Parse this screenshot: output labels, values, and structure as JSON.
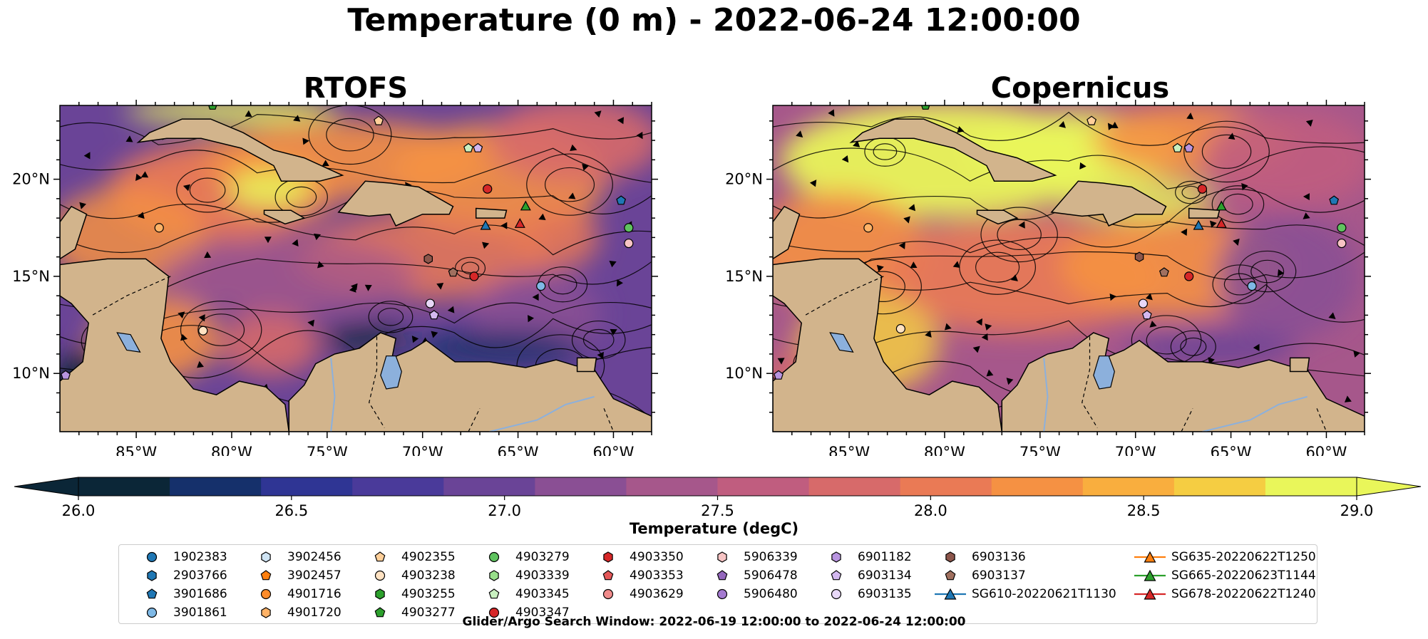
{
  "title": "Temperature (0 m) - 2022-06-24 12:00:00",
  "panels": [
    {
      "title": "RTOFS"
    },
    {
      "title": "Copernicus"
    }
  ],
  "axes": {
    "lon_ticks": [
      "85°W",
      "80°W",
      "75°W",
      "70°W",
      "65°W",
      "60°W"
    ],
    "lat_ticks": [
      "20°N",
      "15°N",
      "10°N"
    ]
  },
  "colorbar": {
    "label": "Temperature (degC)",
    "min": 26.0,
    "max": 29.0,
    "ticks": [
      "26.0",
      "26.5",
      "27.0",
      "27.5",
      "28.0",
      "28.5",
      "29.0"
    ],
    "colors": [
      "#0b2637",
      "#15306b",
      "#2f3594",
      "#4a3a9a",
      "#6a4497",
      "#8a4f94",
      "#a6578b",
      "#c05d7f",
      "#d76a6a",
      "#ea7a55",
      "#f59143",
      "#f9ae3e",
      "#f5cd42",
      "#e9f65a"
    ]
  },
  "colors": {
    "land": "#d2b48c",
    "lakes": "#8cb0dc",
    "coast": "#000000"
  },
  "legend": {
    "items": [
      {
        "label": "1902383",
        "marker": "circle",
        "color": "#1f77b4"
      },
      {
        "label": "2903766",
        "marker": "hexagon",
        "color": "#1f77b4"
      },
      {
        "label": "3901686",
        "marker": "pentagon",
        "color": "#1f77b4"
      },
      {
        "label": "3901861",
        "marker": "circle",
        "color": "#7fb9e6"
      },
      {
        "label": "3902456",
        "marker": "hexagon",
        "color": "#cfe4f4"
      },
      {
        "label": "3902457",
        "marker": "pentagon",
        "color": "#ff7f0e"
      },
      {
        "label": "4901716",
        "marker": "circle",
        "color": "#ff8c2a"
      },
      {
        "label": "4901720",
        "marker": "hexagon",
        "color": "#ffb266"
      },
      {
        "label": "4902355",
        "marker": "pentagon",
        "color": "#ffcf99"
      },
      {
        "label": "4903238",
        "marker": "circle",
        "color": "#ffe2c2"
      },
      {
        "label": "4903255",
        "marker": "hexagon",
        "color": "#2ca02c"
      },
      {
        "label": "4903277",
        "marker": "pentagon",
        "color": "#2ca02c"
      },
      {
        "label": "4903279",
        "marker": "circle",
        "color": "#5fc35f"
      },
      {
        "label": "4903339",
        "marker": "hexagon",
        "color": "#98df8a"
      },
      {
        "label": "4903345",
        "marker": "pentagon",
        "color": "#c9f0c0"
      },
      {
        "label": "4903347",
        "marker": "circle",
        "color": "#d62728"
      },
      {
        "label": "4903350",
        "marker": "hexagon",
        "color": "#d62728"
      },
      {
        "label": "4903353",
        "marker": "pentagon",
        "color": "#e45758"
      },
      {
        "label": "4903629",
        "marker": "circle",
        "color": "#f08b8b"
      },
      {
        "label": "5906339",
        "marker": "hexagon",
        "color": "#f7c4c4"
      },
      {
        "label": "5906478",
        "marker": "pentagon",
        "color": "#9467bd"
      },
      {
        "label": "5906480",
        "marker": "circle",
        "color": "#a47ad0"
      },
      {
        "label": "6901182",
        "marker": "hexagon",
        "color": "#b894e0"
      },
      {
        "label": "6903134",
        "marker": "pentagon",
        "color": "#d3b8f0"
      },
      {
        "label": "6903135",
        "marker": "circle",
        "color": "#e8d8f8"
      },
      {
        "label": "6903136",
        "marker": "hexagon",
        "color": "#8c564b"
      },
      {
        "label": "6903137",
        "marker": "pentagon",
        "color": "#a0705f"
      },
      {
        "label": "SG610-20220621T1130",
        "marker": "line-triangle",
        "color": "#1f77b4"
      },
      {
        "label": "SG635-20220622T1250",
        "marker": "line-triangle",
        "color": "#ff7f0e"
      },
      {
        "label": "SG665-20220623T1144",
        "marker": "line-triangle",
        "color": "#2ca02c"
      },
      {
        "label": "SG678-20220622T1240",
        "marker": "line-triangle",
        "color": "#d62728"
      }
    ]
  },
  "footer": "Glider/Argo Search Window: 2022-06-19 12:00:00 to 2022-06-24 12:00:00"
}
